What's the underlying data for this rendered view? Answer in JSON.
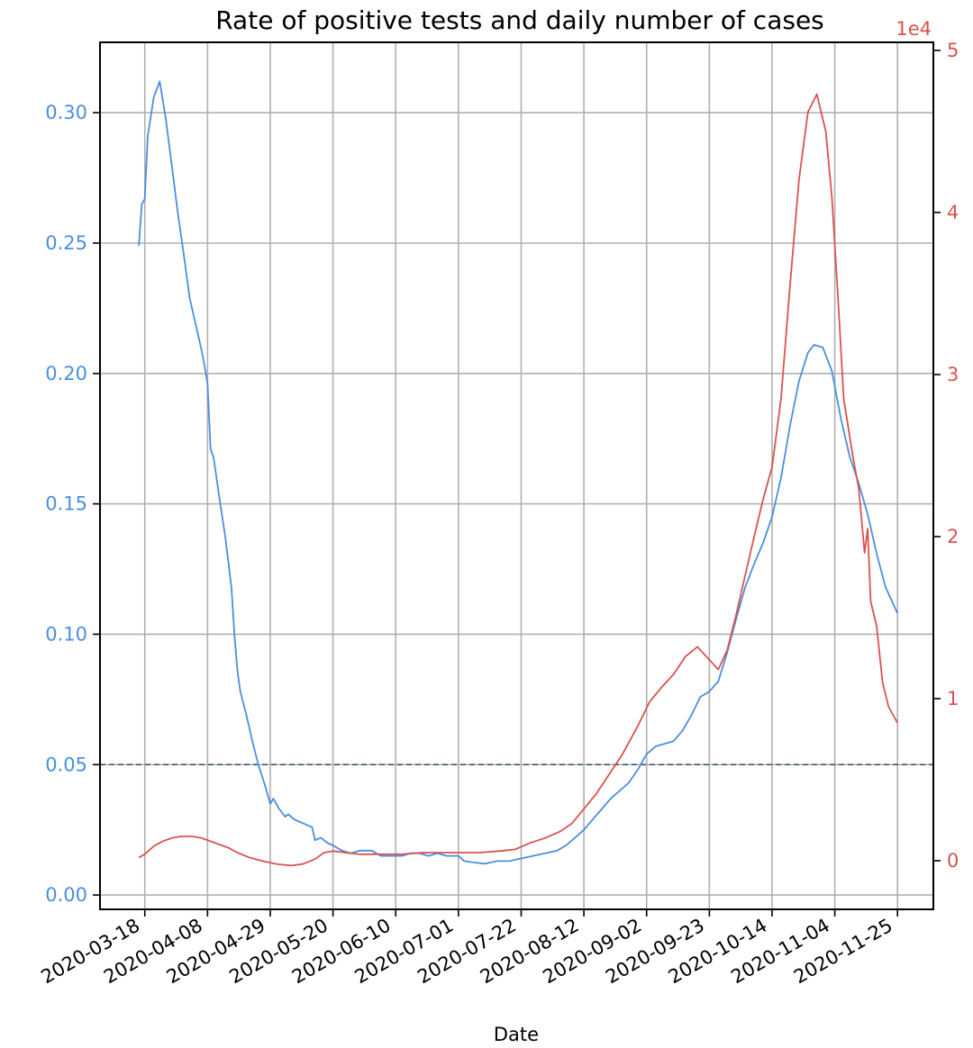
{
  "chart_data": {
    "type": "line",
    "title": "Rate of positive tests and daily number of cases",
    "xlabel": "Date",
    "ylabel_left": "",
    "ylabel_right": "",
    "right_axis_multiplier": "1e4",
    "x_tick_labels": [
      "2020-03-18",
      "2020-04-08",
      "2020-04-29",
      "2020-05-20",
      "2020-06-10",
      "2020-07-01",
      "2020-07-22",
      "2020-08-12",
      "2020-09-02",
      "2020-09-23",
      "2020-10-14",
      "2020-11-04",
      "2020-11-25"
    ],
    "left_ticks": [
      0.0,
      0.05,
      0.1,
      0.15,
      0.2,
      0.25,
      0.3
    ],
    "left_tick_labels": [
      "0.00",
      "0.05",
      "0.10",
      "0.15",
      "0.20",
      "0.25",
      "0.30"
    ],
    "right_ticks": [
      0,
      1,
      2,
      3,
      4,
      5
    ],
    "right_tick_labels": [
      "0",
      "1",
      "2",
      "3",
      "4",
      "5"
    ],
    "xlim": [
      "2020-03-03",
      "2020-12-07"
    ],
    "ylim_left": [
      -0.0055,
      0.327
    ],
    "ylim_right": [
      -0.3,
      5.05
    ],
    "threshold_line": {
      "y": 0.05,
      "style": "dashed"
    },
    "grid": true,
    "colors": {
      "positive_rate": "#4a8fe0",
      "cases": "#d9534f",
      "threshold": "#2f4f4f",
      "grid": "#b0b0b0"
    },
    "series": [
      {
        "axis": "left",
        "color": "#4a8fe0",
        "points": [
          [
            "2020-03-16",
            0.249
          ],
          [
            "2020-03-17",
            0.265
          ],
          [
            "2020-03-18",
            0.267
          ],
          [
            "2020-03-19",
            0.291
          ],
          [
            "2020-03-21",
            0.306
          ],
          [
            "2020-03-23",
            0.312
          ],
          [
            "2020-03-25",
            0.298
          ],
          [
            "2020-03-27",
            0.28
          ],
          [
            "2020-03-29",
            0.262
          ],
          [
            "2020-03-31",
            0.246
          ],
          [
            "2020-04-02",
            0.229
          ],
          [
            "2020-04-04",
            0.219
          ],
          [
            "2020-04-06",
            0.209
          ],
          [
            "2020-04-07",
            0.203
          ],
          [
            "2020-04-08",
            0.196
          ],
          [
            "2020-04-09",
            0.171
          ],
          [
            "2020-04-10",
            0.168
          ],
          [
            "2020-04-12",
            0.152
          ],
          [
            "2020-04-14",
            0.137
          ],
          [
            "2020-04-16",
            0.118
          ],
          [
            "2020-04-17",
            0.1
          ],
          [
            "2020-04-18",
            0.086
          ],
          [
            "2020-04-19",
            0.078
          ],
          [
            "2020-04-21",
            0.069
          ],
          [
            "2020-04-23",
            0.059
          ],
          [
            "2020-04-25",
            0.05
          ],
          [
            "2020-04-27",
            0.043
          ],
          [
            "2020-04-29",
            0.035
          ],
          [
            "2020-04-30",
            0.037
          ],
          [
            "2020-05-02",
            0.033
          ],
          [
            "2020-05-04",
            0.03
          ],
          [
            "2020-05-05",
            0.031
          ],
          [
            "2020-05-07",
            0.029
          ],
          [
            "2020-05-09",
            0.028
          ],
          [
            "2020-05-11",
            0.027
          ],
          [
            "2020-05-13",
            0.026
          ],
          [
            "2020-05-14",
            0.021
          ],
          [
            "2020-05-16",
            0.022
          ],
          [
            "2020-05-18",
            0.02
          ],
          [
            "2020-05-20",
            0.019
          ],
          [
            "2020-05-23",
            0.017
          ],
          [
            "2020-05-26",
            0.016
          ],
          [
            "2020-05-29",
            0.017
          ],
          [
            "2020-06-02",
            0.017
          ],
          [
            "2020-06-05",
            0.015
          ],
          [
            "2020-06-08",
            0.015
          ],
          [
            "2020-06-12",
            0.015
          ],
          [
            "2020-06-15",
            0.016
          ],
          [
            "2020-06-18",
            0.016
          ],
          [
            "2020-06-21",
            0.015
          ],
          [
            "2020-06-24",
            0.016
          ],
          [
            "2020-06-27",
            0.015
          ],
          [
            "2020-07-01",
            0.015
          ],
          [
            "2020-07-03",
            0.013
          ],
          [
            "2020-07-06",
            0.0125
          ],
          [
            "2020-07-10",
            0.012
          ],
          [
            "2020-07-14",
            0.013
          ],
          [
            "2020-07-18",
            0.013
          ],
          [
            "2020-07-22",
            0.014
          ],
          [
            "2020-07-26",
            0.015
          ],
          [
            "2020-07-30",
            0.016
          ],
          [
            "2020-08-03",
            0.017
          ],
          [
            "2020-08-06",
            0.019
          ],
          [
            "2020-08-09",
            0.022
          ],
          [
            "2020-08-12",
            0.025
          ],
          [
            "2020-08-15",
            0.029
          ],
          [
            "2020-08-18",
            0.033
          ],
          [
            "2020-08-21",
            0.037
          ],
          [
            "2020-08-24",
            0.04
          ],
          [
            "2020-08-27",
            0.043
          ],
          [
            "2020-08-30",
            0.048
          ],
          [
            "2020-09-02",
            0.054
          ],
          [
            "2020-09-05",
            0.057
          ],
          [
            "2020-09-08",
            0.058
          ],
          [
            "2020-09-11",
            0.059
          ],
          [
            "2020-09-14",
            0.063
          ],
          [
            "2020-09-17",
            0.069
          ],
          [
            "2020-09-20",
            0.076
          ],
          [
            "2020-09-23",
            0.078
          ],
          [
            "2020-09-26",
            0.082
          ],
          [
            "2020-09-29",
            0.093
          ],
          [
            "2020-10-02",
            0.106
          ],
          [
            "2020-10-05",
            0.118
          ],
          [
            "2020-10-08",
            0.127
          ],
          [
            "2020-10-11",
            0.135
          ],
          [
            "2020-10-14",
            0.145
          ],
          [
            "2020-10-17",
            0.16
          ],
          [
            "2020-10-20",
            0.18
          ],
          [
            "2020-10-23",
            0.197
          ],
          [
            "2020-10-26",
            0.208
          ],
          [
            "2020-10-28",
            0.211
          ],
          [
            "2020-10-31",
            0.21
          ],
          [
            "2020-11-03",
            0.201
          ],
          [
            "2020-11-06",
            0.183
          ],
          [
            "2020-11-09",
            0.168
          ],
          [
            "2020-11-12",
            0.158
          ],
          [
            "2020-11-15",
            0.146
          ],
          [
            "2020-11-18",
            0.131
          ],
          [
            "2020-11-21",
            0.118
          ],
          [
            "2020-11-25",
            0.108
          ]
        ]
      },
      {
        "axis": "right",
        "color": "#d9534f",
        "points": [
          [
            "2020-03-16",
            0.02
          ],
          [
            "2020-03-18",
            0.04
          ],
          [
            "2020-03-21",
            0.09
          ],
          [
            "2020-03-24",
            0.12
          ],
          [
            "2020-03-27",
            0.14
          ],
          [
            "2020-03-30",
            0.15
          ],
          [
            "2020-04-03",
            0.15
          ],
          [
            "2020-04-06",
            0.14
          ],
          [
            "2020-04-09",
            0.12
          ],
          [
            "2020-04-12",
            0.1
          ],
          [
            "2020-04-15",
            0.08
          ],
          [
            "2020-04-18",
            0.05
          ],
          [
            "2020-04-22",
            0.02
          ],
          [
            "2020-04-26",
            0.0
          ],
          [
            "2020-05-01",
            -0.02
          ],
          [
            "2020-05-06",
            -0.03
          ],
          [
            "2020-05-10",
            -0.02
          ],
          [
            "2020-05-14",
            0.01
          ],
          [
            "2020-05-17",
            0.05
          ],
          [
            "2020-05-20",
            0.06
          ],
          [
            "2020-05-24",
            0.05
          ],
          [
            "2020-05-29",
            0.04
          ],
          [
            "2020-06-05",
            0.04
          ],
          [
            "2020-06-12",
            0.04
          ],
          [
            "2020-06-19",
            0.05
          ],
          [
            "2020-06-26",
            0.05
          ],
          [
            "2020-07-01",
            0.05
          ],
          [
            "2020-07-08",
            0.05
          ],
          [
            "2020-07-15",
            0.06
          ],
          [
            "2020-07-20",
            0.07
          ],
          [
            "2020-07-25",
            0.11
          ],
          [
            "2020-07-30",
            0.14
          ],
          [
            "2020-08-04",
            0.18
          ],
          [
            "2020-08-08",
            0.23
          ],
          [
            "2020-08-12",
            0.32
          ],
          [
            "2020-08-16",
            0.41
          ],
          [
            "2020-08-20",
            0.52
          ],
          [
            "2020-08-25",
            0.66
          ],
          [
            "2020-08-30",
            0.83
          ],
          [
            "2020-09-03",
            0.98
          ],
          [
            "2020-09-07",
            1.07
          ],
          [
            "2020-09-11",
            1.15
          ],
          [
            "2020-09-15",
            1.26
          ],
          [
            "2020-09-19",
            1.32
          ],
          [
            "2020-09-23",
            1.24
          ],
          [
            "2020-09-26",
            1.18
          ],
          [
            "2020-09-29",
            1.3
          ],
          [
            "2020-10-02",
            1.52
          ],
          [
            "2020-10-05",
            1.76
          ],
          [
            "2020-10-08",
            2.0
          ],
          [
            "2020-10-11",
            2.23
          ],
          [
            "2020-10-14",
            2.43
          ],
          [
            "2020-10-17",
            2.85
          ],
          [
            "2020-10-20",
            3.55
          ],
          [
            "2020-10-23",
            4.2
          ],
          [
            "2020-10-26",
            4.62
          ],
          [
            "2020-10-29",
            4.73
          ],
          [
            "2020-11-01",
            4.5
          ],
          [
            "2020-11-03",
            4.1
          ],
          [
            "2020-11-05",
            3.5
          ],
          [
            "2020-11-07",
            2.85
          ],
          [
            "2020-11-10",
            2.5
          ],
          [
            "2020-11-12",
            2.3
          ],
          [
            "2020-11-14",
            1.9
          ],
          [
            "2020-11-15",
            2.05
          ],
          [
            "2020-11-16",
            1.6
          ],
          [
            "2020-11-18",
            1.45
          ],
          [
            "2020-11-20",
            1.1
          ],
          [
            "2020-11-22",
            0.95
          ],
          [
            "2020-11-25",
            0.85
          ]
        ]
      }
    ]
  }
}
